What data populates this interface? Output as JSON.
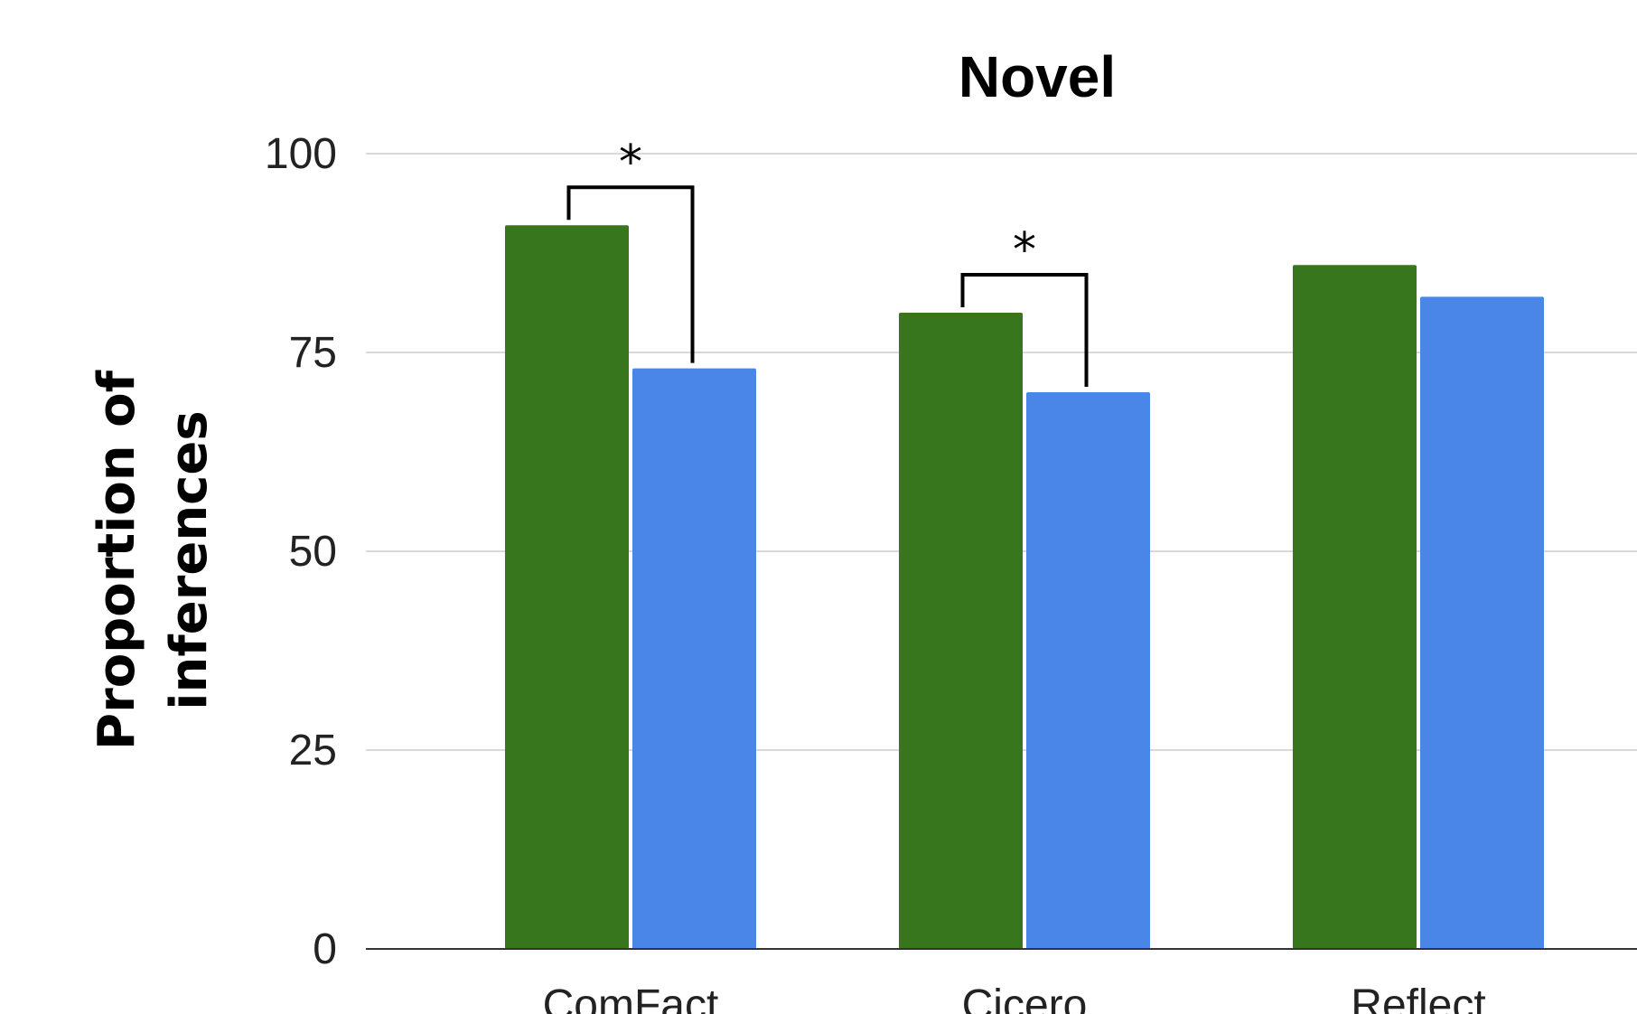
{
  "chart_data": {
    "type": "bar",
    "title": "Novel",
    "ylabel_lines": [
      "Proportion of",
      "inferences"
    ],
    "xlabel": "",
    "ylim": [
      0,
      100
    ],
    "yticks": [
      0,
      25,
      50,
      75,
      100
    ],
    "categories": [
      "ComFact",
      "Cicero",
      "Reflect"
    ],
    "series": [
      {
        "color": "#38761d",
        "values": [
          91,
          80,
          86
        ]
      },
      {
        "color": "#4a86e8",
        "values": [
          73,
          70,
          82
        ]
      }
    ],
    "grid": true,
    "legend": "none",
    "annotations": [
      {
        "category": 0,
        "label": "*"
      },
      {
        "category": 1,
        "label": "*"
      }
    ]
  }
}
